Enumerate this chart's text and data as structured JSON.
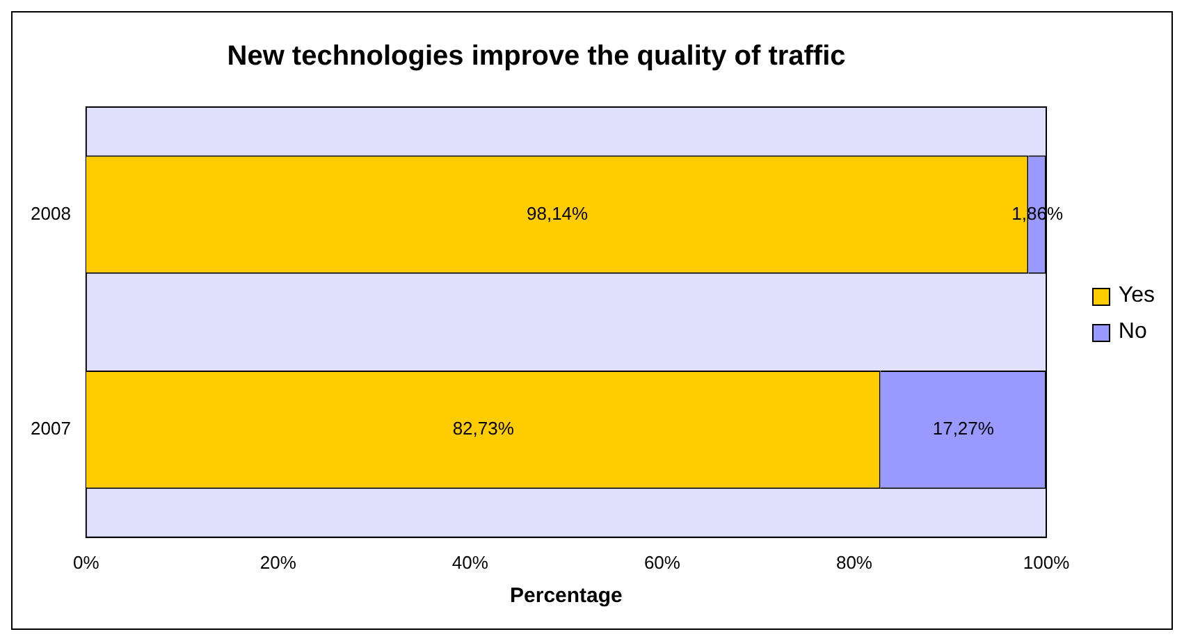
{
  "chart_data": {
    "type": "bar",
    "title": "New technologies improve the quality of traffic",
    "xlabel": "Percentage",
    "orientation": "horizontal",
    "stacked": true,
    "categories": [
      "2008",
      "2007"
    ],
    "series": [
      {
        "name": "Yes",
        "color": "#ffcc00",
        "values": [
          98.14,
          82.73
        ],
        "value_labels": [
          "98,14%",
          "82,73%"
        ]
      },
      {
        "name": "No",
        "color": "#9999ff",
        "values": [
          1.86,
          17.27
        ],
        "value_labels": [
          "1,86%",
          "17,27%"
        ]
      }
    ],
    "xlim": [
      0,
      100
    ],
    "xticks": [
      {
        "value": 0,
        "label": "0%"
      },
      {
        "value": 20,
        "label": "20%"
      },
      {
        "value": 40,
        "label": "40%"
      },
      {
        "value": 60,
        "label": "60%"
      },
      {
        "value": 80,
        "label": "80%"
      },
      {
        "value": 100,
        "label": "100%"
      }
    ],
    "grid": false,
    "legend": "right"
  }
}
